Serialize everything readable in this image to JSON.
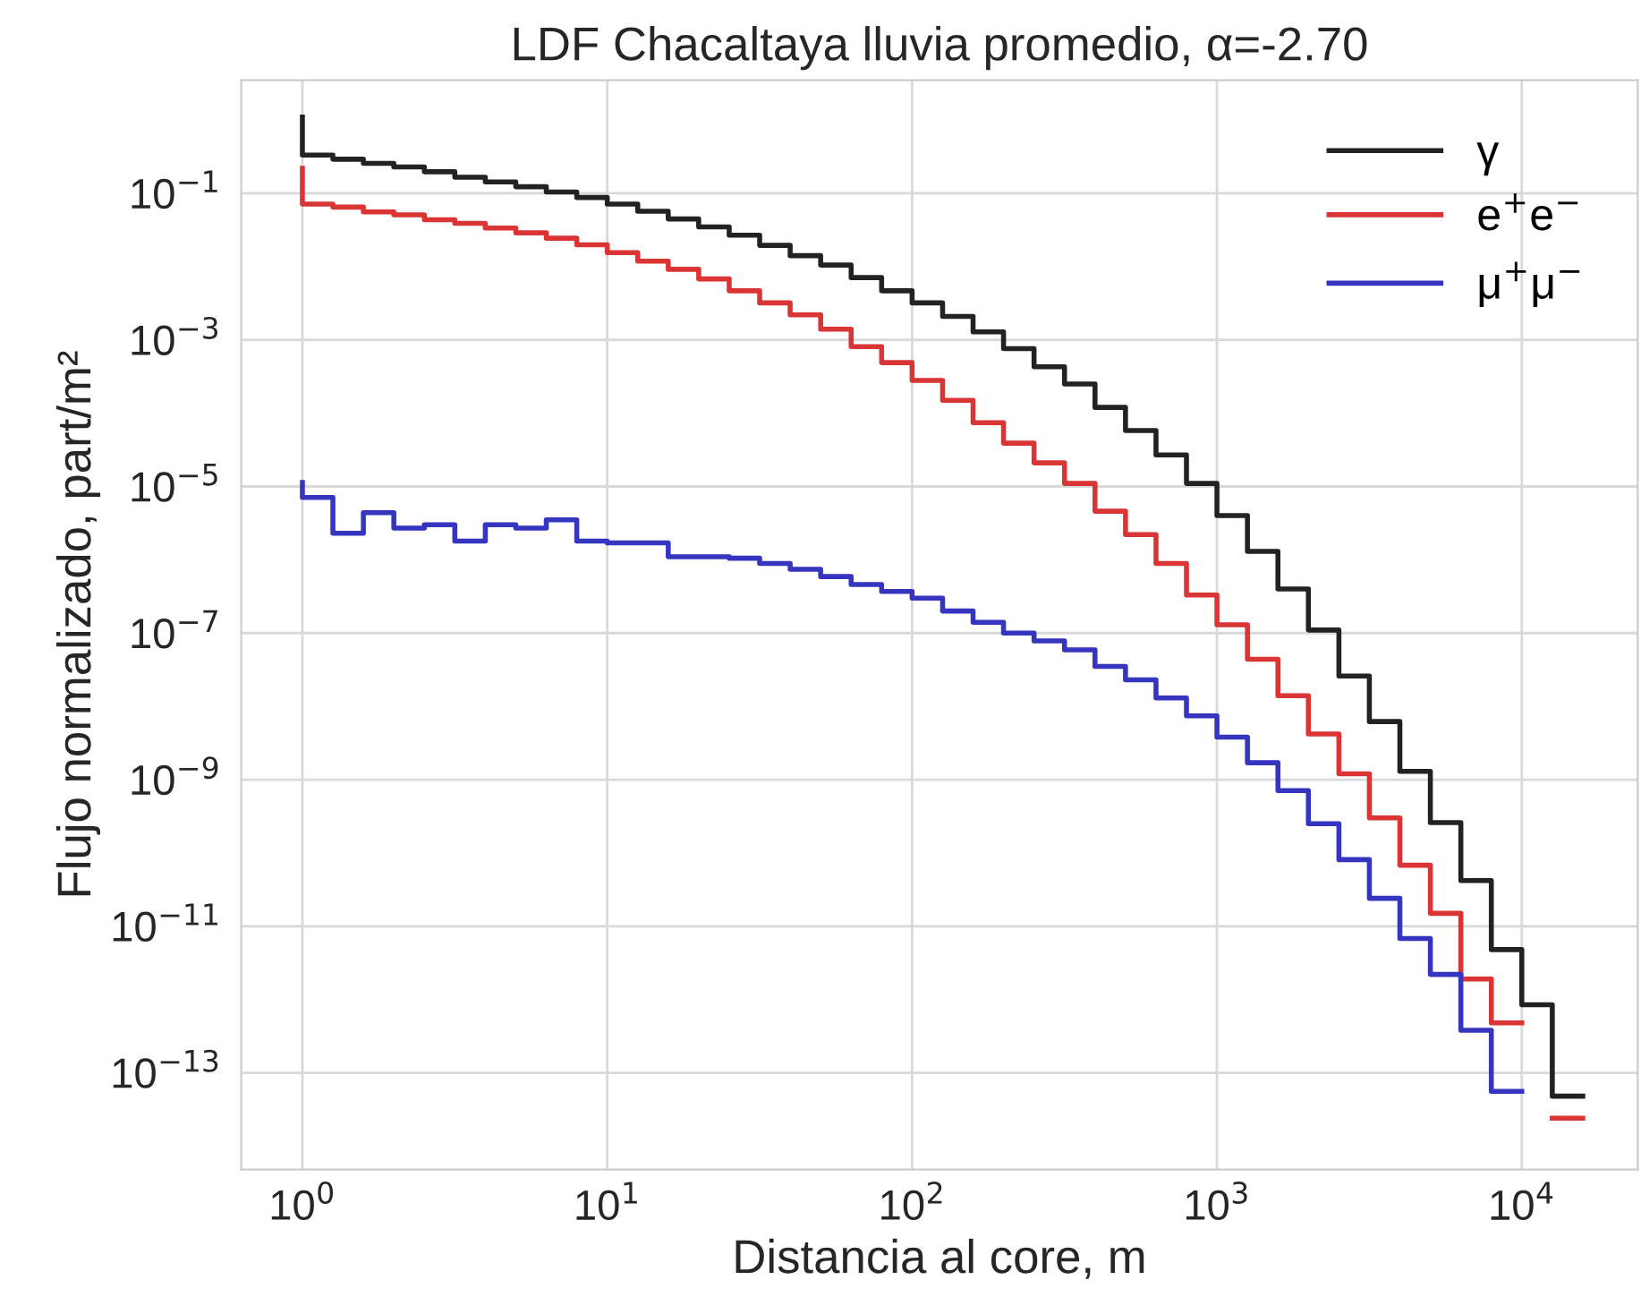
{
  "chart_data": {
    "type": "step",
    "title": "LDF Chacaltaya lluvia promedio, α=-2.70",
    "xlabel": "Distancia al core, m",
    "ylabel": "Flujo normalizado, part/m²",
    "x": [
      1,
      1.259,
      1.585,
      1.995,
      2.512,
      3.162,
      3.981,
      5.012,
      6.31,
      7.943,
      10,
      12.59,
      15.85,
      19.95,
      25.12,
      31.62,
      39.81,
      50.12,
      63.1,
      79.43,
      100,
      125.9,
      158.5,
      199.5,
      251.2,
      316.2,
      398.1,
      501.2,
      631,
      794.3,
      1000,
      1259,
      1585,
      1995,
      2512,
      3162,
      3981,
      5012,
      6310,
      7943,
      10000,
      12589,
      15849
    ],
    "series": [
      {
        "name": "γ",
        "color": "#222222",
        "values": [
          1.1,
          0.333,
          0.292,
          0.257,
          0.229,
          0.197,
          0.166,
          0.143,
          0.123,
          0.104,
          0.0877,
          0.0713,
          0.0569,
          0.0447,
          0.0349,
          0.0268,
          0.0195,
          0.0141,
          0.0105,
          0.00708,
          0.00468,
          0.0032,
          0.00209,
          0.00129,
          0.00076,
          0.00043,
          0.00025,
          0.00012,
          5.8e-05,
          2.7e-05,
          1.1e-05,
          4e-06,
          1.3e-06,
          4e-07,
          1.1e-07,
          2.6e-08,
          6.2e-09,
          1.3e-09,
          2.6e-10,
          4.2e-11,
          4.8e-12,
          8.5e-13,
          4.8e-14
        ]
      },
      {
        "name": "e$^{+}$e$^{−}$",
        "color": "#d93535",
        "values": [
          0.22,
          0.0713,
          0.0649,
          0.0558,
          0.0508,
          0.0437,
          0.039,
          0.0336,
          0.0289,
          0.0244,
          0.0198,
          0.0155,
          0.0119,
          0.00918,
          0.00679,
          0.00468,
          0.0032,
          0.0022,
          0.0014,
          0.00081,
          0.00049,
          0.00028,
          0.00015,
          7.4e-05,
          3.9e-05,
          2.1e-05,
          1.1e-05,
          4.6e-06,
          2.2e-06,
          8.9e-07,
          3.3e-07,
          1.3e-07,
          4.4e-08,
          1.4e-08,
          4.2e-09,
          1.2e-09,
          3e-10,
          6.8e-11,
          1.5e-11,
          1.9e-12,
          4.8e-13,
          null,
          2.4e-14
        ]
      },
      {
        "name": "μ$^{+}$μ$^{−}$",
        "color": "#3535c0",
        "values": [
          1.13e-05,
          7.1e-06,
          2.3e-06,
          4.4e-06,
          2.7e-06,
          3e-06,
          1.8e-06,
          3e-06,
          2.7e-06,
          3.5e-06,
          1.8e-06,
          1.7e-06,
          1.7e-06,
          1.1e-06,
          1.1e-06,
          1.05e-06,
          8.9e-07,
          7.4e-07,
          5.9e-07,
          4.6e-07,
          3.7e-07,
          3e-07,
          2e-07,
          1.4e-07,
          1e-07,
          7.8e-08,
          5.9e-08,
          3.5e-08,
          2.3e-08,
          1.3e-08,
          7.4e-09,
          3.8e-09,
          1.7e-09,
          7.1e-10,
          2.5e-10,
          8.1e-11,
          2.4e-11,
          6.8e-12,
          2.2e-12,
          3.8e-13,
          5.6e-14,
          null,
          null
        ]
      }
    ],
    "log": "xy",
    "xlim": [
      0.63,
      24000
    ],
    "ylim": [
      4.8e-15,
      3.5
    ],
    "xticks": [
      {
        "value": 1,
        "label": "10$^{0}$"
      },
      {
        "value": 10,
        "label": "10$^{1}$"
      },
      {
        "value": 100,
        "label": "10$^{2}$"
      },
      {
        "value": 1000,
        "label": "10$^{3}$"
      },
      {
        "value": 10000,
        "label": "10$^{4}$"
      }
    ],
    "yticks": [
      {
        "value": 1e-13,
        "label": "10$^{−13}$"
      },
      {
        "value": 1e-11,
        "label": "10$^{−11}$"
      },
      {
        "value": 1e-09,
        "label": "10$^{−9}$"
      },
      {
        "value": 1e-07,
        "label": "10$^{−7}$"
      },
      {
        "value": 1e-05,
        "label": "10$^{−5}$"
      },
      {
        "value": 0.001,
        "label": "10$^{−3}$"
      },
      {
        "value": 0.1,
        "label": "10$^{−1}$"
      }
    ],
    "grid": true,
    "legend": "top right"
  }
}
